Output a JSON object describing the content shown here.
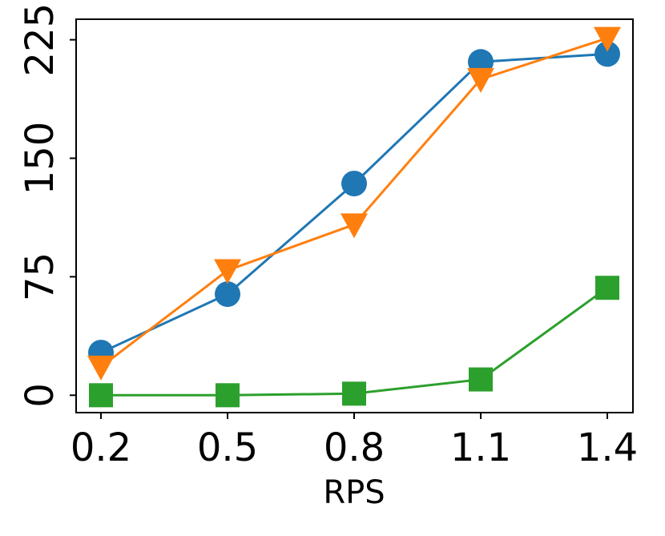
{
  "chart_data": {
    "type": "line",
    "title": "",
    "xlabel": "RPS",
    "ylabel": "",
    "x": [
      "0.2",
      "0.5",
      "0.8",
      "1.1",
      "1.4"
    ],
    "yticks": [
      "0",
      "75",
      "150",
      "225"
    ],
    "ylim": [
      -11,
      238
    ],
    "grid": false,
    "legend": "none",
    "series": [
      {
        "color": "#1f77b4",
        "marker": "circle",
        "values": [
          27,
          64,
          134,
          211,
          216
        ]
      },
      {
        "color": "#ff7f0e",
        "marker": "triangle-down",
        "values": [
          18,
          79,
          108,
          200,
          226
        ]
      },
      {
        "color": "#2ca02c",
        "marker": "square",
        "values": [
          0,
          0,
          1,
          10,
          68
        ]
      }
    ]
  }
}
